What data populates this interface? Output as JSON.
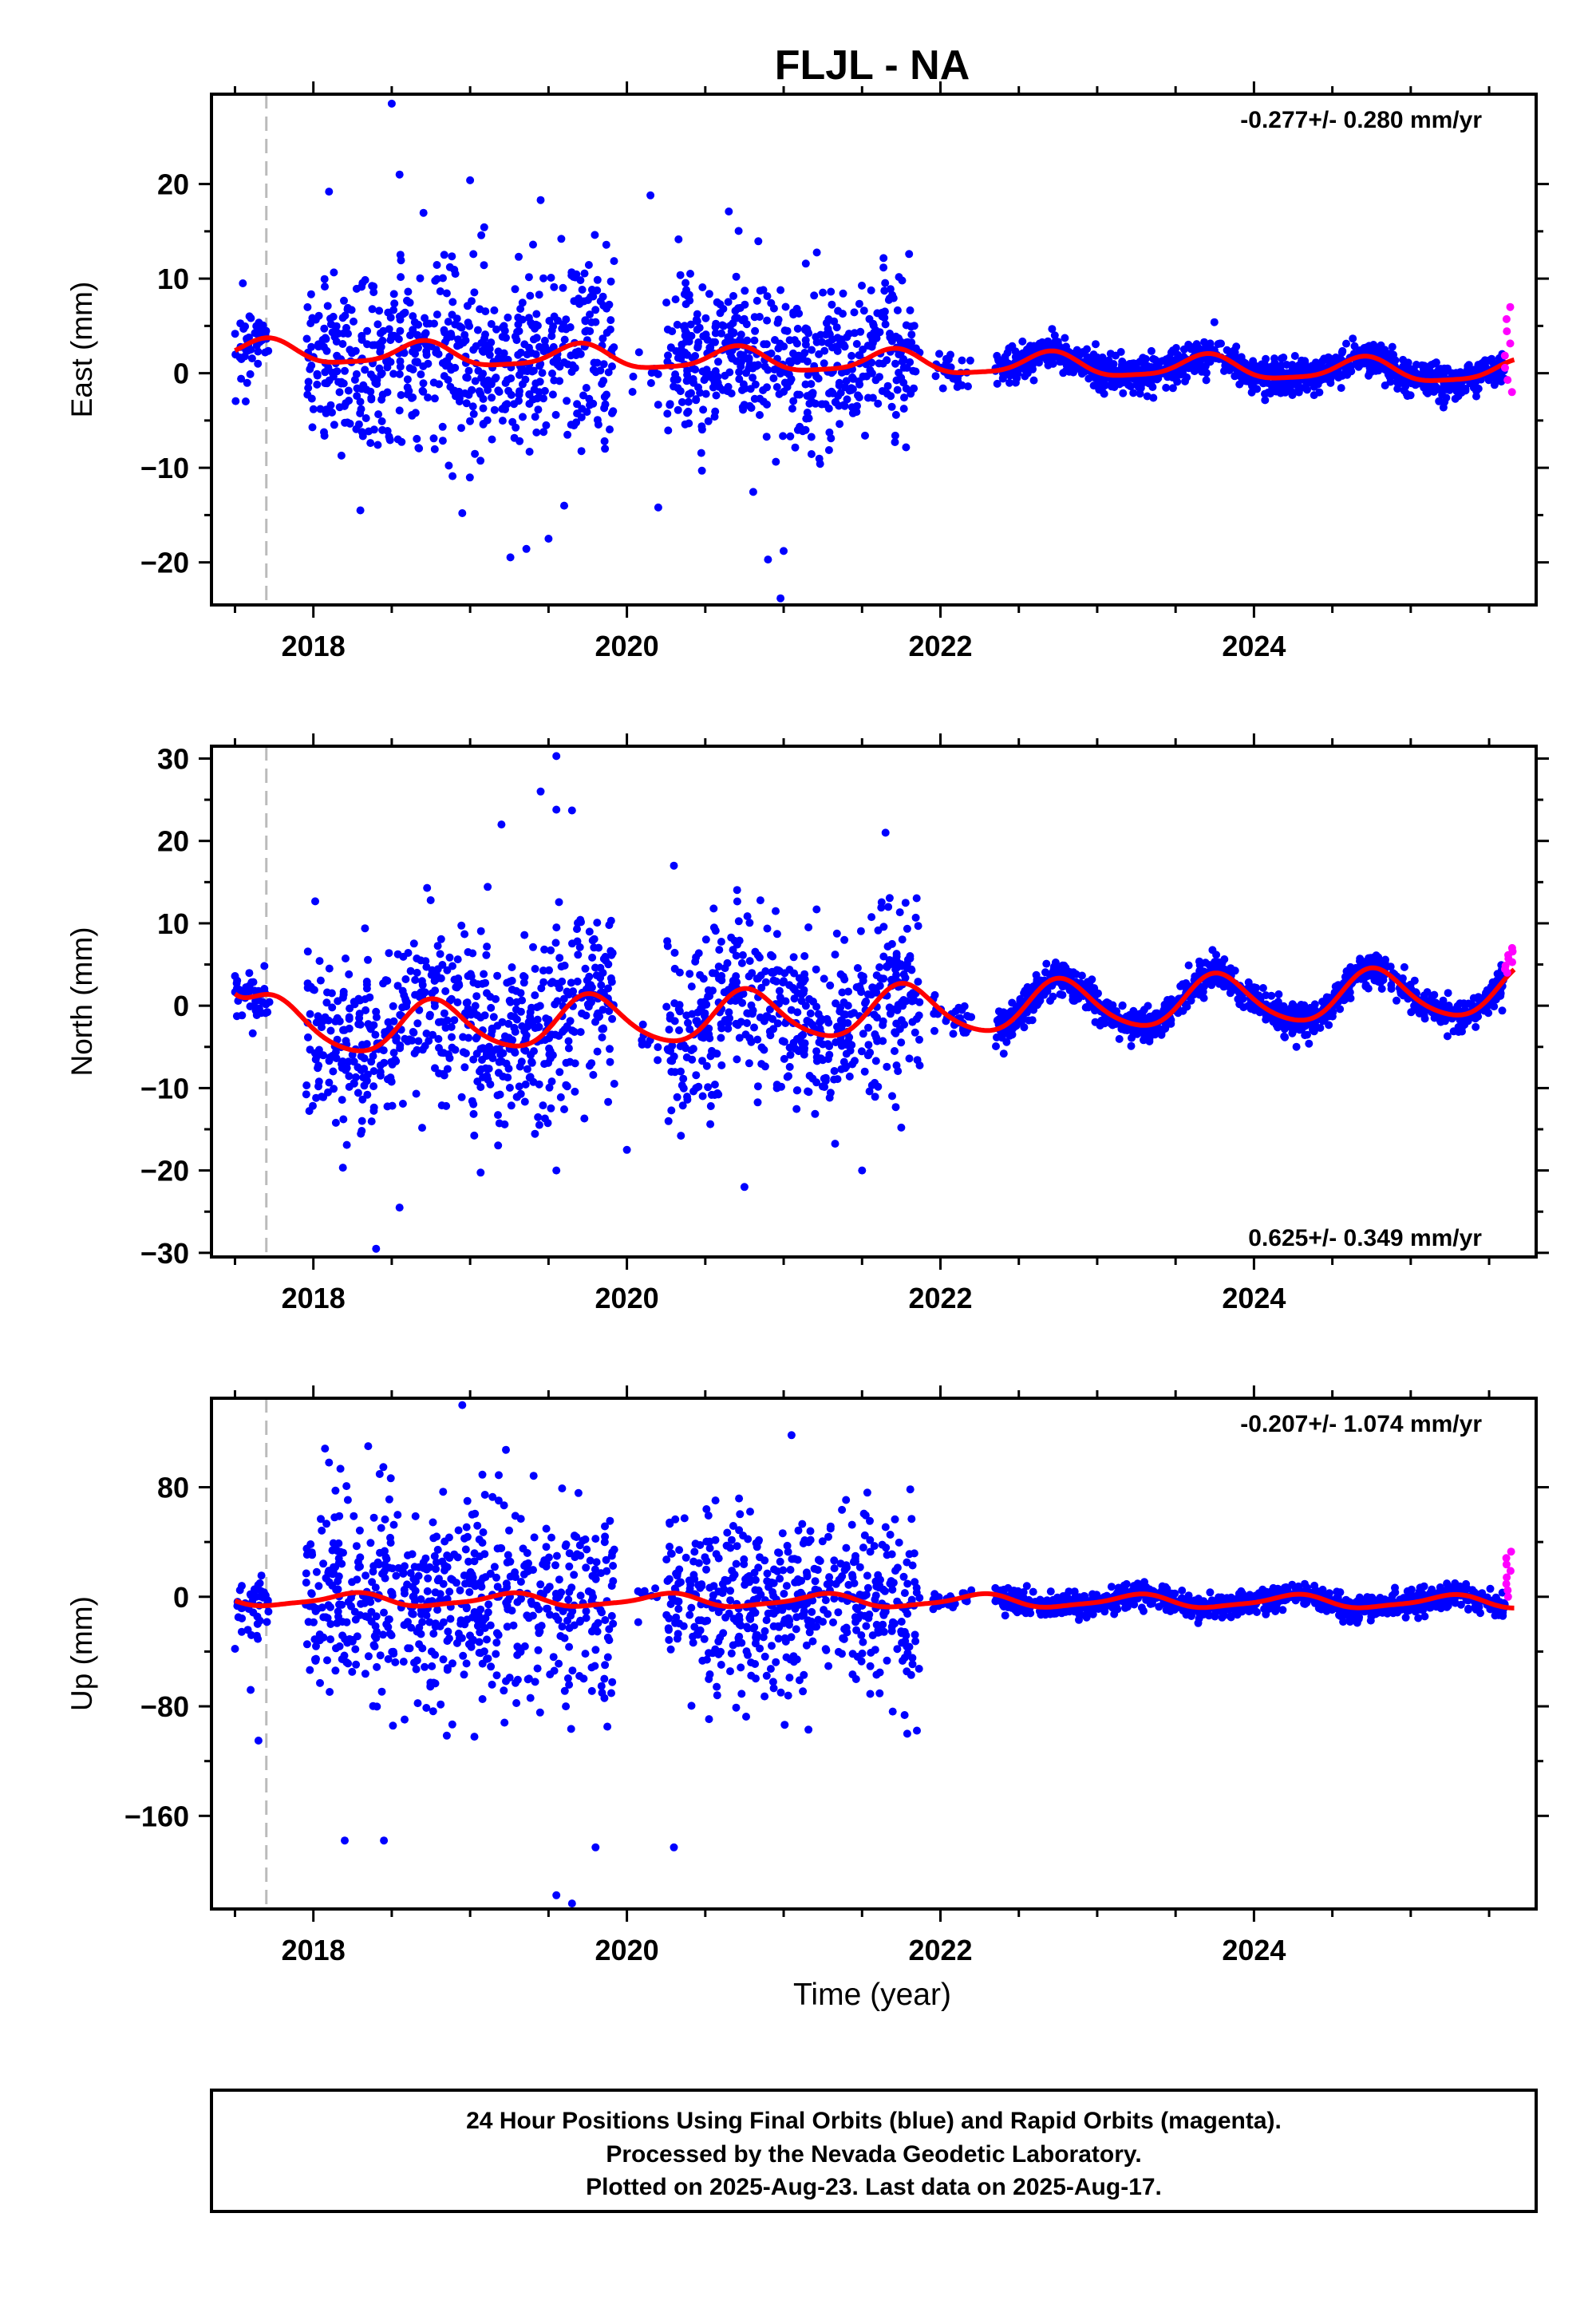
{
  "title": "FLJL - NA",
  "xlabel": "Time (year)",
  "footer": {
    "line1": "24 Hour Positions Using Final Orbits (blue) and Rapid Orbits (magenta).",
    "line2": "Processed by the Nevada Geodetic Laboratory.",
    "line3": "Plotted on 2025-Aug-23. Last data on 2025-Aug-17."
  },
  "colors": {
    "final": "#0000ff",
    "rapid": "#ff00ff",
    "model": "#ff0000",
    "event_line": "#bbbbbb",
    "axis": "#000000"
  },
  "chart_data": [
    {
      "type": "scatter",
      "ylabel": "East (mm)",
      "rate_text": "-0.277+/- 0.280 mm/yr",
      "rate_position": "top-right",
      "xlim": [
        2017.35,
        2025.8
      ],
      "ylim": [
        -24.5,
        29.5
      ],
      "x_ticks": [
        2018,
        2020,
        2022,
        2024
      ],
      "y_ticks": [
        -20,
        -10,
        0,
        10,
        20
      ],
      "y_tick_labels": [
        "−20",
        "−10",
        "0",
        "10",
        "20"
      ],
      "event_line_x": 2017.7,
      "scatter_final": {
        "segments": [
          {
            "x0": 2017.5,
            "x1": 2017.72,
            "n": 45,
            "scatter": 2.6
          },
          {
            "x0": 2017.95,
            "x1": 2019.92,
            "n": 620,
            "scatter": 6.5
          },
          {
            "x0": 2020.0,
            "x1": 2020.2,
            "n": 8,
            "scatter": 2.5
          },
          {
            "x0": 2020.25,
            "x1": 2021.87,
            "n": 520,
            "scatter": 5.2
          },
          {
            "x0": 2021.95,
            "x1": 2022.2,
            "n": 30,
            "scatter": 1.6
          },
          {
            "x0": 2022.35,
            "x1": 2025.6,
            "n": 1150,
            "scatter": 1.2
          }
        ],
        "outliers": [
          [
            2017.55,
            9.5
          ],
          [
            2018.1,
            19.2
          ],
          [
            2018.5,
            28.5
          ],
          [
            2018.55,
            21.0
          ],
          [
            2019.0,
            20.4
          ],
          [
            2019.45,
            18.3
          ],
          [
            2020.15,
            18.8
          ],
          [
            2020.65,
            17.1
          ],
          [
            2018.3,
            -14.5
          ],
          [
            2018.95,
            -14.8
          ],
          [
            2019.5,
            -17.5
          ],
          [
            2019.6,
            -14.0
          ],
          [
            2020.2,
            -14.2
          ],
          [
            2020.9,
            -19.7
          ],
          [
            2020.98,
            -23.8
          ],
          [
            2021.0,
            -18.8
          ],
          [
            2021.8,
            12.6
          ]
        ]
      },
      "scatter_rapid": {
        "x0": 2025.6,
        "x1": 2025.65,
        "n": 8,
        "y_min": -2.0,
        "y_max": 7.0
      },
      "model_line": {
        "offset": 1.2,
        "trend": -0.277,
        "t_ref": 2021.5,
        "annual_amp": 1.2,
        "annual_phase": 2017.45,
        "semiannual_amp": 0.3,
        "semiannual_phase": 2017.6
      }
    },
    {
      "type": "scatter",
      "ylabel": "North (mm)",
      "rate_text": "0.625+/- 0.349 mm/yr",
      "rate_position": "bottom-right",
      "xlim": [
        2017.35,
        2025.8
      ],
      "ylim": [
        -30.5,
        31.5
      ],
      "x_ticks": [
        2018,
        2020,
        2022,
        2024
      ],
      "y_ticks": [
        -30,
        -20,
        -10,
        0,
        10,
        20,
        30
      ],
      "y_tick_labels": [
        "−30",
        "−20",
        "−10",
        "0",
        "10",
        "20",
        "30"
      ],
      "event_line_x": 2017.7,
      "scatter_final": {
        "segments": [
          {
            "x0": 2017.5,
            "x1": 2017.72,
            "n": 45,
            "scatter": 2.0
          },
          {
            "x0": 2017.95,
            "x1": 2019.92,
            "n": 620,
            "scatter": 7.5
          },
          {
            "x0": 2020.0,
            "x1": 2020.2,
            "n": 8,
            "scatter": 3.0
          },
          {
            "x0": 2020.25,
            "x1": 2021.87,
            "n": 520,
            "scatter": 7.0
          },
          {
            "x0": 2021.95,
            "x1": 2022.2,
            "n": 30,
            "scatter": 1.5
          },
          {
            "x0": 2022.35,
            "x1": 2025.6,
            "n": 1150,
            "scatter": 1.3
          }
        ],
        "outliers": [
          [
            2019.45,
            26.0
          ],
          [
            2019.55,
            30.3
          ],
          [
            2019.55,
            23.8
          ],
          [
            2019.65,
            23.7
          ],
          [
            2019.2,
            22.0
          ],
          [
            2020.3,
            17.0
          ],
          [
            2021.65,
            21.0
          ],
          [
            2018.4,
            -29.5
          ],
          [
            2018.55,
            -24.5
          ],
          [
            2019.55,
            -20.0
          ],
          [
            2020.0,
            -17.5
          ],
          [
            2020.75,
            -22.0
          ],
          [
            2021.5,
            -20.0
          ],
          [
            2021.75,
            -14.8
          ]
        ]
      },
      "scatter_rapid": {
        "x0": 2025.6,
        "x1": 2025.65,
        "n": 8,
        "y_min": 4.0,
        "y_max": 7.0
      },
      "model_line": {
        "offset": -0.8,
        "trend": 0.625,
        "t_ref": 2021.5,
        "annual_amp": 3.0,
        "annual_phase": 2017.52,
        "semiannual_amp": 0.4,
        "semiannual_phase": 2017.6,
        "decay_amp": 5.5,
        "decay_t0": 2017.5,
        "decay_tau": 0.15
      }
    },
    {
      "type": "scatter",
      "ylabel": "Up (mm)",
      "rate_text": "-0.207+/- 1.074 mm/yr",
      "rate_position": "top-right",
      "xlim": [
        2017.35,
        2025.8
      ],
      "ylim": [
        -228,
        145
      ],
      "x_ticks": [
        2018,
        2020,
        2022,
        2024
      ],
      "y_ticks": [
        -160,
        -80,
        0,
        80
      ],
      "y_tick_labels": [
        "−160",
        "−80",
        "0",
        "80"
      ],
      "event_line_x": 2017.7,
      "scatter_final": {
        "segments": [
          {
            "x0": 2017.5,
            "x1": 2017.72,
            "n": 45,
            "scatter": 15.0
          },
          {
            "x0": 2017.95,
            "x1": 2019.92,
            "n": 620,
            "scatter": 48.0
          },
          {
            "x0": 2020.0,
            "x1": 2020.2,
            "n": 8,
            "scatter": 10.0
          },
          {
            "x0": 2020.25,
            "x1": 2021.87,
            "n": 520,
            "scatter": 45.0
          },
          {
            "x0": 2021.95,
            "x1": 2022.2,
            "n": 30,
            "scatter": 4.0
          },
          {
            "x0": 2022.35,
            "x1": 2025.6,
            "n": 1150,
            "scatter": 5.5
          }
        ],
        "outliers": [
          [
            2018.95,
            140
          ],
          [
            2021.05,
            118
          ],
          [
            2018.35,
            110
          ],
          [
            2018.1,
            98
          ],
          [
            2018.2,
            -178
          ],
          [
            2018.45,
            -178
          ],
          [
            2019.55,
            -218
          ],
          [
            2019.65,
            -224
          ],
          [
            2019.8,
            -183
          ],
          [
            2020.3,
            -183
          ],
          [
            2017.65,
            -105
          ],
          [
            2017.6,
            -68
          ],
          [
            2017.5,
            -38
          ]
        ]
      },
      "scatter_rapid": {
        "x0": 2025.6,
        "x1": 2025.65,
        "n": 8,
        "y_min": 0.0,
        "y_max": 33.0
      },
      "model_line": {
        "offset": -3.0,
        "trend": -0.207,
        "t_ref": 2021.5,
        "annual_amp": 4.5,
        "annual_phase": 2017.0,
        "semiannual_amp": 1.2,
        "semiannual_phase": 2017.2
      }
    }
  ]
}
